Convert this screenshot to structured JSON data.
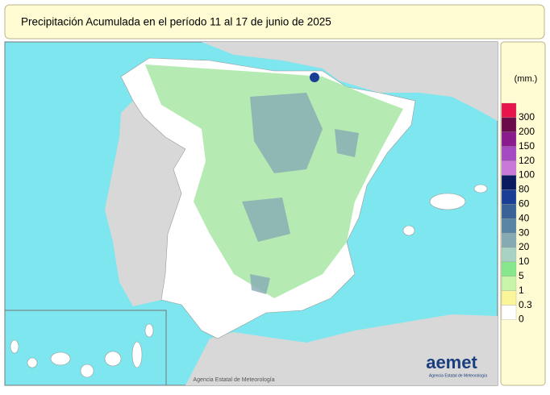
{
  "header": {
    "title": "Precipitación Acumulada en el período 11 al 17 de junio de 2025"
  },
  "legend": {
    "unit": "(mm.)",
    "items": [
      {
        "label": "300",
        "color": "#e8144c"
      },
      {
        "label": "200",
        "color": "#6a0a4a"
      },
      {
        "label": "150",
        "color": "#8a1a8e"
      },
      {
        "label": "120",
        "color": "#a64ac4"
      },
      {
        "label": "100",
        "color": "#c97ad8"
      },
      {
        "label": "80",
        "color": "#0a1a5e"
      },
      {
        "label": "60",
        "color": "#1a3e96"
      },
      {
        "label": "40",
        "color": "#3a6296"
      },
      {
        "label": "30",
        "color": "#5a84a4"
      },
      {
        "label": "20",
        "color": "#86aab4"
      },
      {
        "label": "10",
        "color": "#a8d2c4"
      },
      {
        "label": "5",
        "color": "#86e88a"
      },
      {
        "label": "1",
        "color": "#c8f4a8"
      },
      {
        "label": "0.3",
        "color": "#fbf59a"
      },
      {
        "label": "0",
        "color": "#ffffff"
      }
    ]
  },
  "map": {
    "credit": "Agencia Estatal de Meteorología",
    "logo": "aemet",
    "logo_subtitle": "Agencia Estatal de Meteorología"
  }
}
